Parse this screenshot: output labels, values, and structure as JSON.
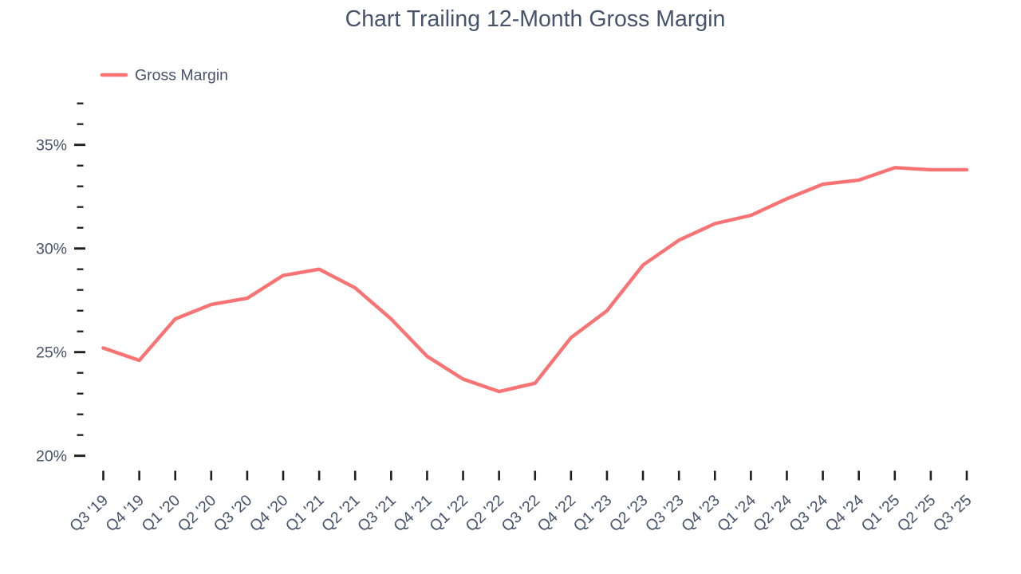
{
  "colors": {
    "line": "#F87373",
    "text": "#45536B",
    "tick": "#1F1F1F",
    "background": "#FFFFFF"
  },
  "chart_data": {
    "type": "line",
    "title": "Chart Trailing 12-Month Gross Margin",
    "xlabel": "",
    "ylabel": "",
    "grid": false,
    "legend_position": "top-left",
    "categories": [
      "Q3 '19",
      "Q4 '19",
      "Q1 '20",
      "Q2 '20",
      "Q3 '20",
      "Q4 '20",
      "Q1 '21",
      "Q2 '21",
      "Q3 '21",
      "Q4 '21",
      "Q1 '22",
      "Q2 '22",
      "Q3 '22",
      "Q4 '22",
      "Q1 '23",
      "Q2 '23",
      "Q3 '23",
      "Q4 '23",
      "Q1 '24",
      "Q2 '24",
      "Q3 '24",
      "Q4 '24",
      "Q1 '25",
      "Q2 '25",
      "Q3 '25"
    ],
    "series": [
      {
        "name": "Gross Margin",
        "unit": "%",
        "values": [
          25.2,
          24.6,
          26.6,
          27.3,
          27.6,
          28.7,
          29.0,
          28.1,
          26.6,
          24.8,
          23.7,
          23.1,
          23.5,
          25.7,
          27.0,
          29.2,
          30.4,
          31.2,
          31.6,
          32.4,
          33.1,
          33.3,
          33.9,
          33.8,
          33.8
        ]
      }
    ],
    "y_axis": {
      "ylim": [
        19.6,
        37.6
      ],
      "major_ticks": [
        {
          "value": 20,
          "label": "20%"
        },
        {
          "value": 25,
          "label": "25%"
        },
        {
          "value": 30,
          "label": "30%"
        },
        {
          "value": 35,
          "label": "35%"
        }
      ],
      "minor_tick_values": [
        21,
        22,
        23,
        24,
        26,
        27,
        28,
        29,
        31,
        32,
        33,
        34,
        36,
        37
      ]
    }
  }
}
